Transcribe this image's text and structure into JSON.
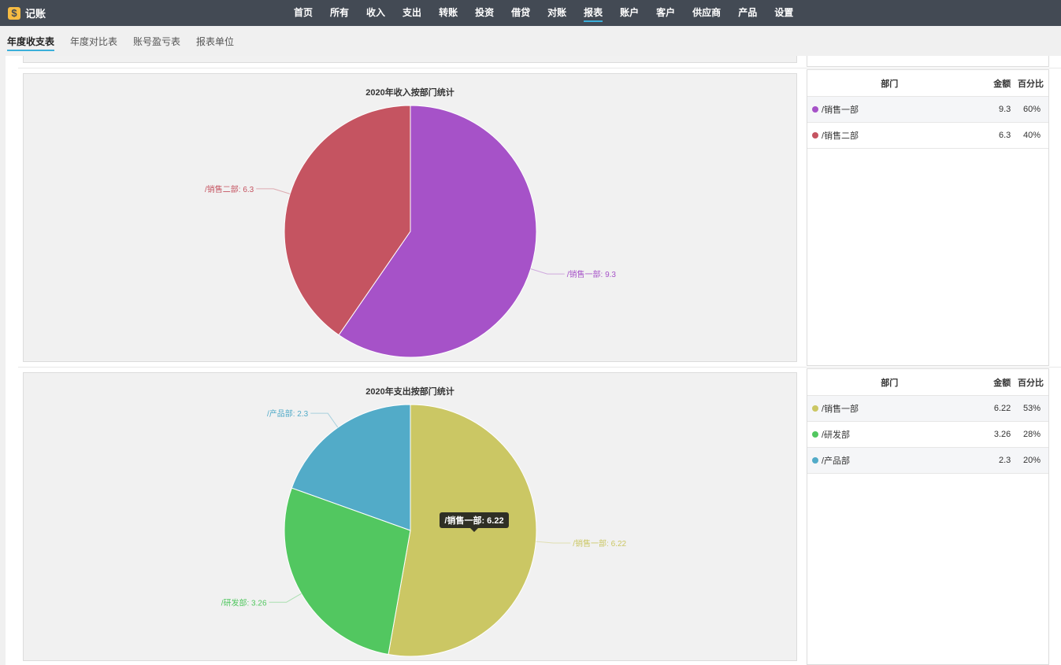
{
  "app": {
    "title": "记账",
    "logo_glyph": "$"
  },
  "nav": {
    "items": [
      {
        "label": "首页"
      },
      {
        "label": "所有"
      },
      {
        "label": "收入"
      },
      {
        "label": "支出"
      },
      {
        "label": "转账"
      },
      {
        "label": "投资"
      },
      {
        "label": "借贷"
      },
      {
        "label": "对账"
      },
      {
        "label": "报表",
        "active": true
      },
      {
        "label": "账户"
      },
      {
        "label": "客户"
      },
      {
        "label": "供应商"
      },
      {
        "label": "产品"
      },
      {
        "label": "设置"
      }
    ],
    "accent_color": "#3bafda"
  },
  "subtabs": [
    {
      "label": "年度收支表",
      "active": true
    },
    {
      "label": "年度对比表"
    },
    {
      "label": "账号盈亏表"
    },
    {
      "label": "报表单位"
    }
  ],
  "income_table": {
    "headers": {
      "name": "部门",
      "amount": "金额",
      "percent": "百分比"
    },
    "rows": [
      {
        "name": "/销售一部",
        "amount": "9.3",
        "percent": "60%",
        "color": "#a652c8"
      },
      {
        "name": "/销售二部",
        "amount": "6.3",
        "percent": "40%",
        "color": "#c55461"
      }
    ]
  },
  "expense_table": {
    "headers": {
      "name": "部门",
      "amount": "金额",
      "percent": "百分比"
    },
    "rows": [
      {
        "name": "/销售一部",
        "amount": "6.22",
        "percent": "53%",
        "color": "#cbc764"
      },
      {
        "name": "/研发部",
        "amount": "3.26",
        "percent": "28%",
        "color": "#52c760"
      },
      {
        "name": "/产品部",
        "amount": "2.3",
        "percent": "20%",
        "color": "#52abc8"
      }
    ]
  },
  "chart_data": [
    {
      "type": "pie",
      "title": "2020年收入按部门统计",
      "series": [
        {
          "name": "/销售一部",
          "value": 9.3,
          "label": "/销售一部: 9.3",
          "color": "#a652c8"
        },
        {
          "name": "/销售二部",
          "value": 6.3,
          "label": "/销售二部: 6.3",
          "color": "#c55461"
        }
      ]
    },
    {
      "type": "pie",
      "title": "2020年支出按部门统计",
      "series": [
        {
          "name": "/销售一部",
          "value": 6.22,
          "label": "/销售一部: 6.22",
          "color": "#cbc764"
        },
        {
          "name": "/研发部",
          "value": 3.26,
          "label": "/研发部: 3.26",
          "color": "#52c760"
        },
        {
          "name": "/产品部",
          "value": 2.3,
          "label": "/产品部: 2.3",
          "color": "#52abc8"
        }
      ],
      "tooltip": "/销售一部: 6.22"
    }
  ]
}
